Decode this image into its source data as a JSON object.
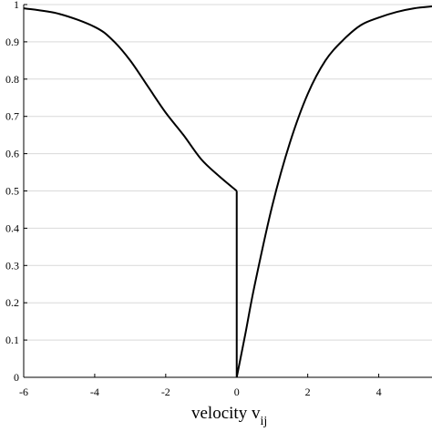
{
  "chart_data": {
    "type": "line",
    "title": "",
    "xlabel": "velocity v",
    "xlabel_subscript": "ij",
    "ylabel": "",
    "xlim": [
      -6,
      5.5
    ],
    "ylim": [
      0,
      1
    ],
    "grid": "horizontal",
    "xticks": [
      "-6",
      "-4",
      "-2",
      "0",
      "2",
      "4"
    ],
    "yticks": [
      "0",
      "0.1",
      "0.2",
      "0.3",
      "0.4",
      "0.5",
      "0.6",
      "0.7",
      "0.8",
      "0.9",
      "1"
    ],
    "series": [
      {
        "color": "#000000",
        "x": [
          -6,
          -5,
          -4,
          -3.5,
          -3,
          -2.5,
          -2,
          -1.5,
          -1,
          -0.5,
          0,
          0,
          0.25,
          0.5,
          1,
          1.5,
          2,
          2.5,
          3,
          3.5,
          4,
          4.5,
          5,
          5.5
        ],
        "y": [
          0.99,
          0.975,
          0.94,
          0.905,
          0.85,
          0.78,
          0.71,
          0.65,
          0.585,
          0.54,
          0.5,
          0,
          0.12,
          0.245,
          0.46,
          0.63,
          0.76,
          0.85,
          0.905,
          0.945,
          0.965,
          0.98,
          0.99,
          0.995
        ]
      }
    ]
  }
}
